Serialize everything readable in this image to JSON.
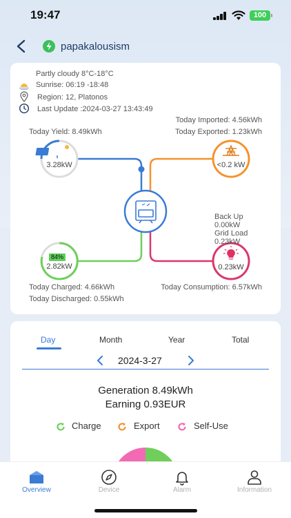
{
  "status_bar": {
    "time": "19:47",
    "battery": "100"
  },
  "header": {
    "plant_name": "papakalousism"
  },
  "weather": {
    "condition": "Partly cloudy 8°C-18°C",
    "sunrise": "Sunrise: 06:19 -18:48",
    "region": "Region: 12, Platonos",
    "last_update": "Last Update :2024-03-27 13:43:49"
  },
  "flow": {
    "today_imported": "Today Imported: 4.56kWh",
    "today_exported": "Today Exported: 1.23kWh",
    "today_yield": "Today Yield: 8.49kWh",
    "solar_power": "3.28kW",
    "grid_power": "<0.2 kW",
    "backup_label": "Back Up",
    "backup_value": "0.00kW",
    "grid_load_label": "Grid Load",
    "grid_load_value": "0.23kW",
    "battery_soc": "84%",
    "battery_power": "2.82kW",
    "load_power": "0.23kW",
    "today_charged": "Today Charged: 4.66kWh",
    "today_discharged": "Today Discharged: 0.55kWh",
    "today_consumption": "Today Consumption: 6.57kWh"
  },
  "stats": {
    "tabs": [
      {
        "label": "Day",
        "active": true
      },
      {
        "label": "Month",
        "active": false
      },
      {
        "label": "Year",
        "active": false
      },
      {
        "label": "Total",
        "active": false
      }
    ],
    "date": "2024-3-27",
    "generation": "Generation 8.49kWh",
    "earning": "Earning 0.93EUR",
    "legend": [
      {
        "label": "Charge",
        "color": "#6fcf5a"
      },
      {
        "label": "Export",
        "color": "#f5922f"
      },
      {
        "label": "Self-Use",
        "color": "#f26ab3"
      }
    ]
  },
  "nav": {
    "items": [
      {
        "label": "Overview",
        "icon": "home-icon",
        "active": true
      },
      {
        "label": "Device",
        "icon": "compass-icon",
        "active": false
      },
      {
        "label": "Alarm",
        "icon": "bell-icon",
        "active": false
      },
      {
        "label": "Information",
        "icon": "user-icon",
        "active": false
      }
    ]
  },
  "colors": {
    "accent": "#3a7bd5",
    "solar": "#3a7bd5",
    "grid": "#f5922f",
    "battery": "#6fcf5a",
    "load": "#d9386a"
  }
}
